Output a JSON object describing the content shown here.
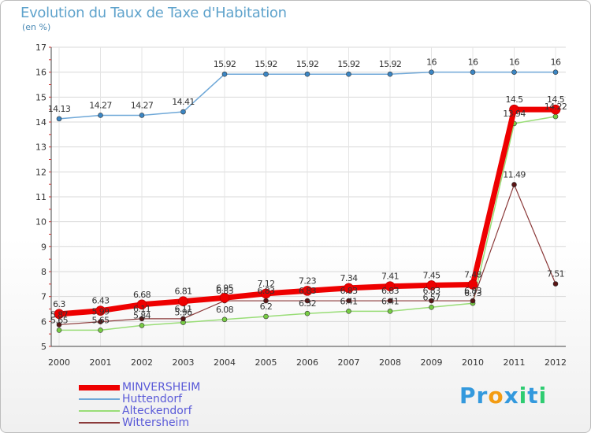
{
  "title": "Evolution du Taux de Taxe d'Habitation",
  "subtitle": "(en %)",
  "logo": {
    "text": "Proxiti",
    "letters": [
      "P",
      "r",
      "o",
      "x",
      "i",
      "t",
      "i"
    ],
    "colors": [
      "#3399dd",
      "#3399dd",
      "#f39c12",
      "#3399dd",
      "#2ecc71",
      "#3399dd",
      "#2ecc71"
    ]
  },
  "chart_data": {
    "type": "line",
    "x": [
      "2000",
      "2001",
      "2002",
      "2003",
      "2004",
      "2005",
      "2006",
      "2007",
      "2008",
      "2009",
      "2010",
      "2011",
      "2012"
    ],
    "ylim": [
      5,
      17
    ],
    "yticks": [
      "5",
      "6",
      "7",
      "8",
      "9",
      "10",
      "11",
      "12",
      "13",
      "14",
      "15",
      "16",
      "17"
    ],
    "grid": true,
    "series": [
      {
        "name": "MINVERSHEIM",
        "color": "#ee0000",
        "point_color": "#ee0000",
        "width": 7,
        "labels": true,
        "values": [
          6.3,
          6.43,
          6.68,
          6.81,
          6.95,
          7.12,
          7.23,
          7.34,
          7.41,
          7.45,
          7.48,
          14.5,
          14.5
        ]
      },
      {
        "name": "Huttendorf",
        "color": "#6fa8d8",
        "point_color": "#3b86c4",
        "width": 1.5,
        "labels": true,
        "values": [
          14.13,
          14.27,
          14.27,
          14.41,
          15.92,
          15.92,
          15.92,
          15.92,
          15.92,
          16,
          16,
          16,
          16
        ]
      },
      {
        "name": "Alteckendorf",
        "color": "#99dd77",
        "point_color": "#77cc44",
        "width": 1.5,
        "labels": true,
        "values": [
          5.65,
          5.65,
          5.84,
          5.96,
          6.08,
          6.2,
          6.32,
          6.41,
          6.41,
          6.57,
          6.73,
          13.94,
          14.22
        ]
      },
      {
        "name": "Wittersheim",
        "color": "#8b3a3a",
        "point_color": "#5a1414",
        "width": 1.2,
        "labels": true,
        "values": [
          5.87,
          5.99,
          6.11,
          6.11,
          6.83,
          6.83,
          6.83,
          6.83,
          6.83,
          6.83,
          6.83,
          11.49,
          7.51
        ]
      }
    ]
  }
}
